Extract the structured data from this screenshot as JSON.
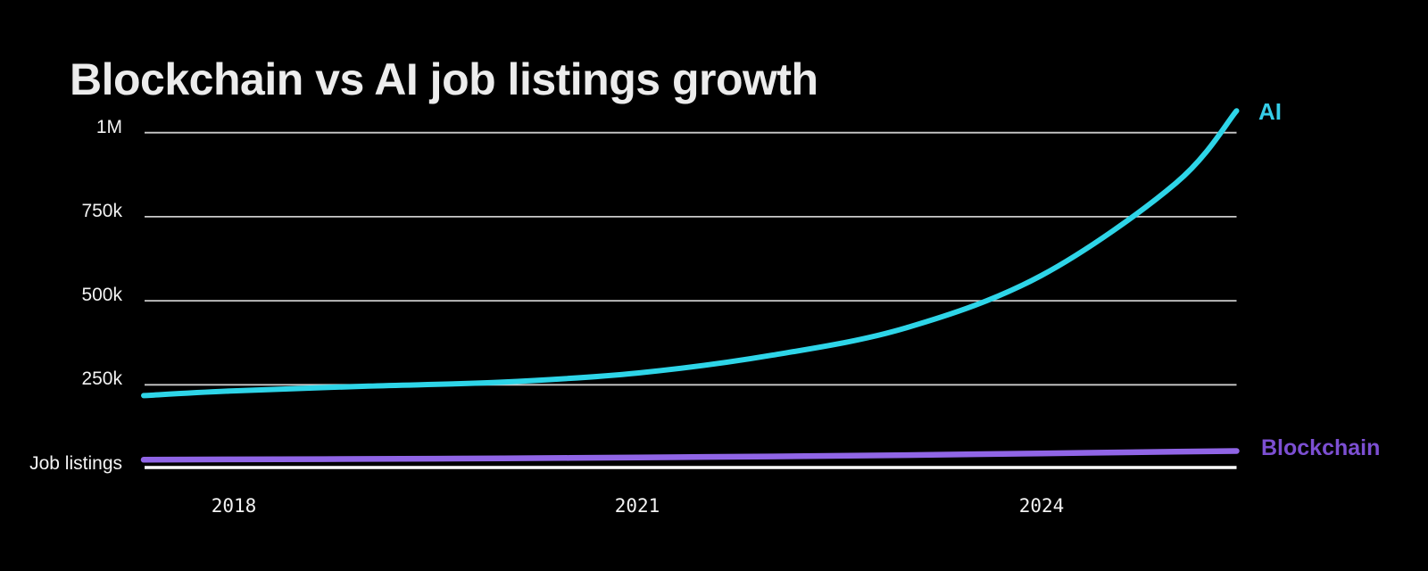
{
  "chart_data": {
    "type": "line",
    "title": "Blockchain vs AI job listings growth",
    "y_axis_caption": "Job listings",
    "background_color": "#000000",
    "grid": true,
    "grid_color": "#cbcbcb",
    "baseline_color": "#ffffff",
    "legend_position": "end-of-line-right",
    "x": [
      2017.33,
      2018,
      2019,
      2020,
      2021,
      2022,
      2023,
      2024,
      2025,
      2025.45
    ],
    "xticks": [
      {
        "label": "2018",
        "value": 2018
      },
      {
        "label": "2021",
        "value": 2021
      },
      {
        "label": "2024",
        "value": 2024
      }
    ],
    "yticks": [
      {
        "label": "1M",
        "value": 1000000
      },
      {
        "label": "750k",
        "value": 750000
      },
      {
        "label": "500k",
        "value": 500000
      },
      {
        "label": "250k",
        "value": 250000
      }
    ],
    "ylim": [
      0,
      1100000
    ],
    "series": [
      {
        "name": "AI",
        "color": "#2ed5e8",
        "label_color": "#35cde8",
        "values": [
          218000,
          232000,
          246000,
          258000,
          285000,
          338000,
          420000,
          575000,
          850000,
          1065000
        ]
      },
      {
        "name": "Blockchain",
        "color": "#9065e6",
        "label_color": "#7c4fd2",
        "values": [
          27000,
          28000,
          29500,
          31000,
          34000,
          37000,
          41000,
          46000,
          51000,
          53000
        ]
      }
    ]
  }
}
